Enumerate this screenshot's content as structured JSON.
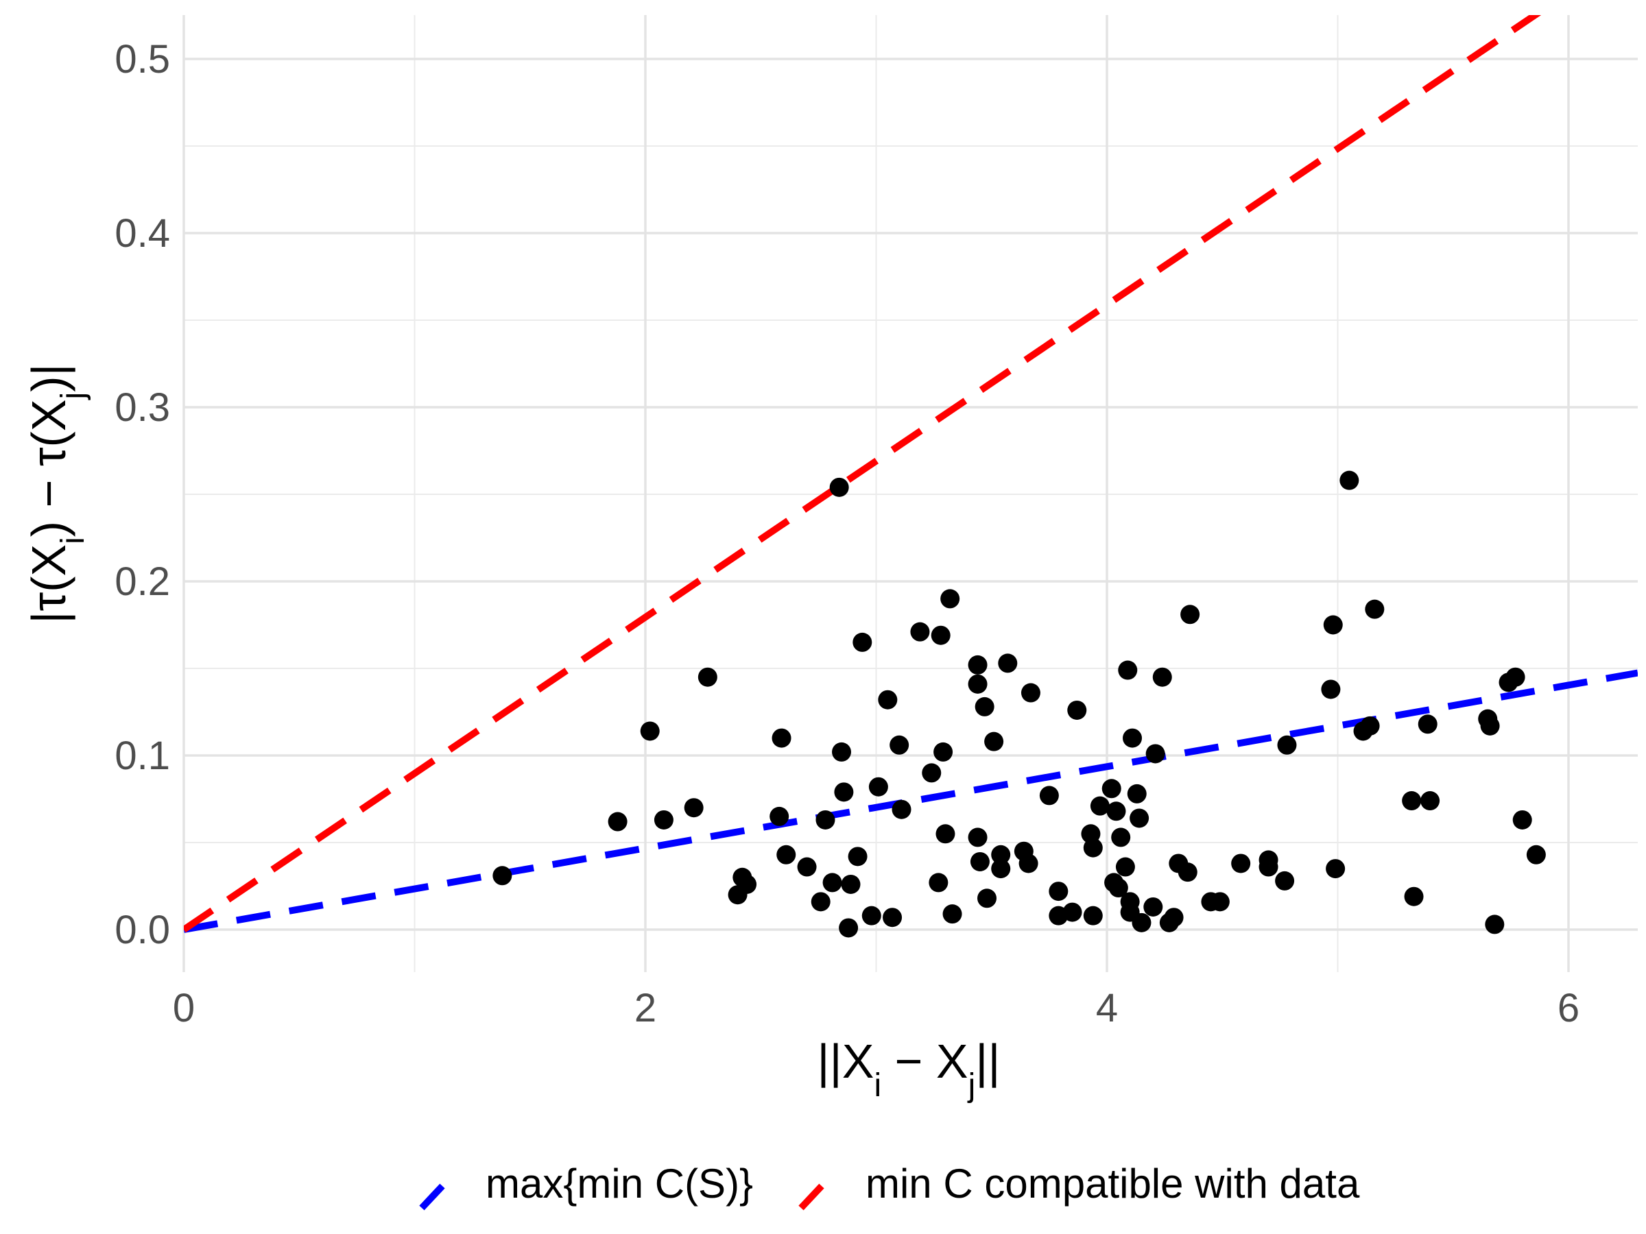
{
  "chart_data": {
    "type": "scatter",
    "xlabel": "||X_i − X_j||",
    "ylabel": "|τ(X_i) − τ(X_j)|",
    "xlim": [
      0,
      6.3
    ],
    "ylim": [
      -0.025,
      0.525
    ],
    "x_ticks": [
      {
        "value": 0,
        "label": "0"
      },
      {
        "value": 2,
        "label": "2"
      },
      {
        "value": 4,
        "label": "4"
      },
      {
        "value": 6,
        "label": "6"
      }
    ],
    "y_ticks": [
      {
        "value": 0.0,
        "label": "0.0"
      },
      {
        "value": 0.1,
        "label": "0.1"
      },
      {
        "value": 0.2,
        "label": "0.2"
      },
      {
        "value": 0.3,
        "label": "0.3"
      },
      {
        "value": 0.4,
        "label": "0.4"
      },
      {
        "value": 0.5,
        "label": "0.5"
      }
    ],
    "grid": true,
    "legend_position": "bottom",
    "points": [
      [
        1.38,
        0.031
      ],
      [
        1.88,
        0.062
      ],
      [
        2.02,
        0.114
      ],
      [
        2.08,
        0.063
      ],
      [
        2.21,
        0.07
      ],
      [
        2.27,
        0.145
      ],
      [
        2.4,
        0.02
      ],
      [
        2.42,
        0.03
      ],
      [
        2.44,
        0.026
      ],
      [
        2.58,
        0.065
      ],
      [
        2.59,
        0.11
      ],
      [
        2.61,
        0.043
      ],
      [
        2.7,
        0.036
      ],
      [
        2.76,
        0.016
      ],
      [
        2.78,
        0.063
      ],
      [
        2.81,
        0.027
      ],
      [
        2.84,
        0.254
      ],
      [
        2.85,
        0.102
      ],
      [
        2.86,
        0.079
      ],
      [
        2.88,
        0.001
      ],
      [
        2.89,
        0.026
      ],
      [
        2.92,
        0.042
      ],
      [
        2.94,
        0.165
      ],
      [
        2.98,
        0.008
      ],
      [
        3.01,
        0.082
      ],
      [
        3.05,
        0.132
      ],
      [
        3.07,
        0.007
      ],
      [
        3.1,
        0.106
      ],
      [
        3.11,
        0.069
      ],
      [
        3.19,
        0.171
      ],
      [
        3.24,
        0.09
      ],
      [
        3.27,
        0.027
      ],
      [
        3.28,
        0.169
      ],
      [
        3.29,
        0.102
      ],
      [
        3.3,
        0.055
      ],
      [
        3.32,
        0.19
      ],
      [
        3.33,
        0.009
      ],
      [
        3.44,
        0.152
      ],
      [
        3.44,
        0.141
      ],
      [
        3.44,
        0.053
      ],
      [
        3.45,
        0.039
      ],
      [
        3.47,
        0.128
      ],
      [
        3.48,
        0.018
      ],
      [
        3.51,
        0.108
      ],
      [
        3.54,
        0.035
      ],
      [
        3.54,
        0.043
      ],
      [
        3.57,
        0.153
      ],
      [
        3.64,
        0.045
      ],
      [
        3.66,
        0.038
      ],
      [
        3.67,
        0.136
      ],
      [
        3.75,
        0.077
      ],
      [
        3.79,
        0.022
      ],
      [
        3.79,
        0.008
      ],
      [
        3.85,
        0.01
      ],
      [
        3.87,
        0.126
      ],
      [
        3.93,
        0.055
      ],
      [
        3.94,
        0.047
      ],
      [
        3.94,
        0.008
      ],
      [
        3.97,
        0.071
      ],
      [
        4.02,
        0.081
      ],
      [
        4.03,
        0.027
      ],
      [
        4.04,
        0.068
      ],
      [
        4.05,
        0.024
      ],
      [
        4.06,
        0.053
      ],
      [
        4.08,
        0.036
      ],
      [
        4.09,
        0.149
      ],
      [
        4.1,
        0.016
      ],
      [
        4.1,
        0.01
      ],
      [
        4.11,
        0.11
      ],
      [
        4.13,
        0.078
      ],
      [
        4.14,
        0.064
      ],
      [
        4.15,
        0.004
      ],
      [
        4.2,
        0.013
      ],
      [
        4.21,
        0.101
      ],
      [
        4.24,
        0.145
      ],
      [
        4.27,
        0.004
      ],
      [
        4.29,
        0.007
      ],
      [
        4.31,
        0.038
      ],
      [
        4.35,
        0.033
      ],
      [
        4.36,
        0.181
      ],
      [
        4.45,
        0.016
      ],
      [
        4.49,
        0.016
      ],
      [
        4.58,
        0.038
      ],
      [
        4.7,
        0.036
      ],
      [
        4.7,
        0.04
      ],
      [
        4.77,
        0.028
      ],
      [
        4.78,
        0.106
      ],
      [
        4.97,
        0.138
      ],
      [
        4.98,
        0.175
      ],
      [
        4.99,
        0.035
      ],
      [
        5.05,
        0.258
      ],
      [
        5.11,
        0.114
      ],
      [
        5.14,
        0.117
      ],
      [
        5.16,
        0.184
      ],
      [
        5.32,
        0.074
      ],
      [
        5.33,
        0.019
      ],
      [
        5.39,
        0.118
      ],
      [
        5.4,
        0.074
      ],
      [
        5.65,
        0.121
      ],
      [
        5.66,
        0.117
      ],
      [
        5.68,
        0.003
      ],
      [
        5.74,
        0.142
      ],
      [
        5.77,
        0.145
      ],
      [
        5.8,
        0.063
      ],
      [
        5.86,
        0.043
      ]
    ],
    "series": [
      {
        "name": "max{min C(S)}",
        "color": "#0000ff",
        "slope": 0.0234,
        "style": "dashed"
      },
      {
        "name": "min C compatible with data",
        "color": "#ff0000",
        "slope": 0.0897,
        "style": "dashed"
      }
    ]
  }
}
